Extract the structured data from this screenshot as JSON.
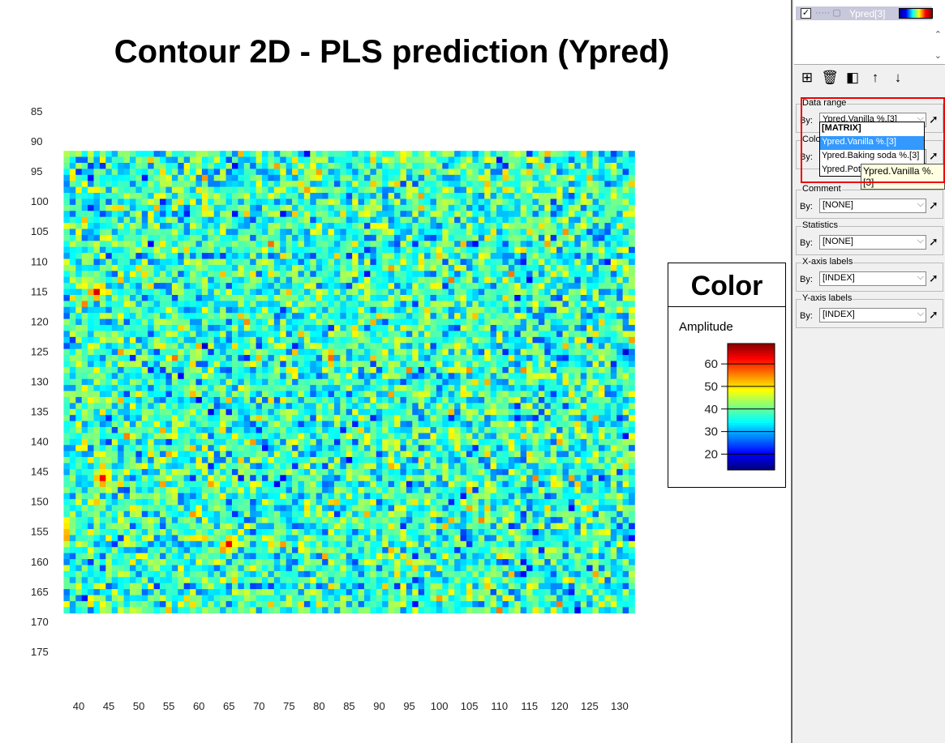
{
  "chart_data": {
    "type": "heatmap",
    "title": "Contour 2D - PLS prediction (Ypred)",
    "x_ticks": [
      40,
      45,
      50,
      55,
      60,
      65,
      70,
      75,
      80,
      85,
      90,
      95,
      100,
      105,
      110,
      115,
      120,
      125,
      130
    ],
    "y_ticks": [
      85,
      90,
      95,
      100,
      105,
      110,
      115,
      120,
      125,
      130,
      135,
      140,
      145,
      150,
      155,
      160,
      165,
      170,
      175
    ],
    "xlim": [
      37.5,
      132.5
    ],
    "ylim": [
      91.5,
      168.5
    ],
    "x_range": [
      38,
      132
    ],
    "y_range": [
      92,
      168
    ],
    "y_axis_inverted": true,
    "value_range": [
      13,
      69
    ],
    "mean_value": 37,
    "colormap": "jet",
    "hotspots": [
      {
        "x": 44,
        "y": 146,
        "value": 62
      },
      {
        "x": 43,
        "y": 115,
        "value": 64
      },
      {
        "x": 65,
        "y": 157,
        "value": 63
      },
      {
        "x": 131,
        "y": 125,
        "value": 18
      }
    ],
    "legend": {
      "title": "Color",
      "label": "Amplitude",
      "ticks": [
        20,
        30,
        40,
        50,
        60
      ],
      "placement": "right"
    }
  },
  "panel": {
    "layer": {
      "name": "Ypred[3]",
      "checked": true
    },
    "toolbar_icons": [
      "add-layer-icon",
      "delete-icon",
      "split-icon",
      "arrow-up-icon",
      "arrow-down-icon"
    ],
    "by_label": "By:",
    "groups": [
      {
        "label": "Data range",
        "value": "Ypred.Vanilla %.[3]"
      },
      {
        "label": "Color",
        "value": ""
      },
      {
        "label": "Comment",
        "value": "[NONE]"
      },
      {
        "label": "Statistics",
        "value": "[NONE]"
      },
      {
        "label": "X-axis labels",
        "value": "[INDEX]"
      },
      {
        "label": "Y-axis labels",
        "value": "[INDEX]"
      }
    ],
    "dropdown_options": [
      "[MATRIX]",
      "Ypred.Vanilla %.[3]",
      "Ypred.Baking soda %.[3]",
      "Ypred.Pot"
    ],
    "dropdown_selected": "Ypred.Vanilla %.[3]",
    "tooltip": "Ypred.Vanilla %.[3]",
    "highlight_color": "#3399ff"
  }
}
